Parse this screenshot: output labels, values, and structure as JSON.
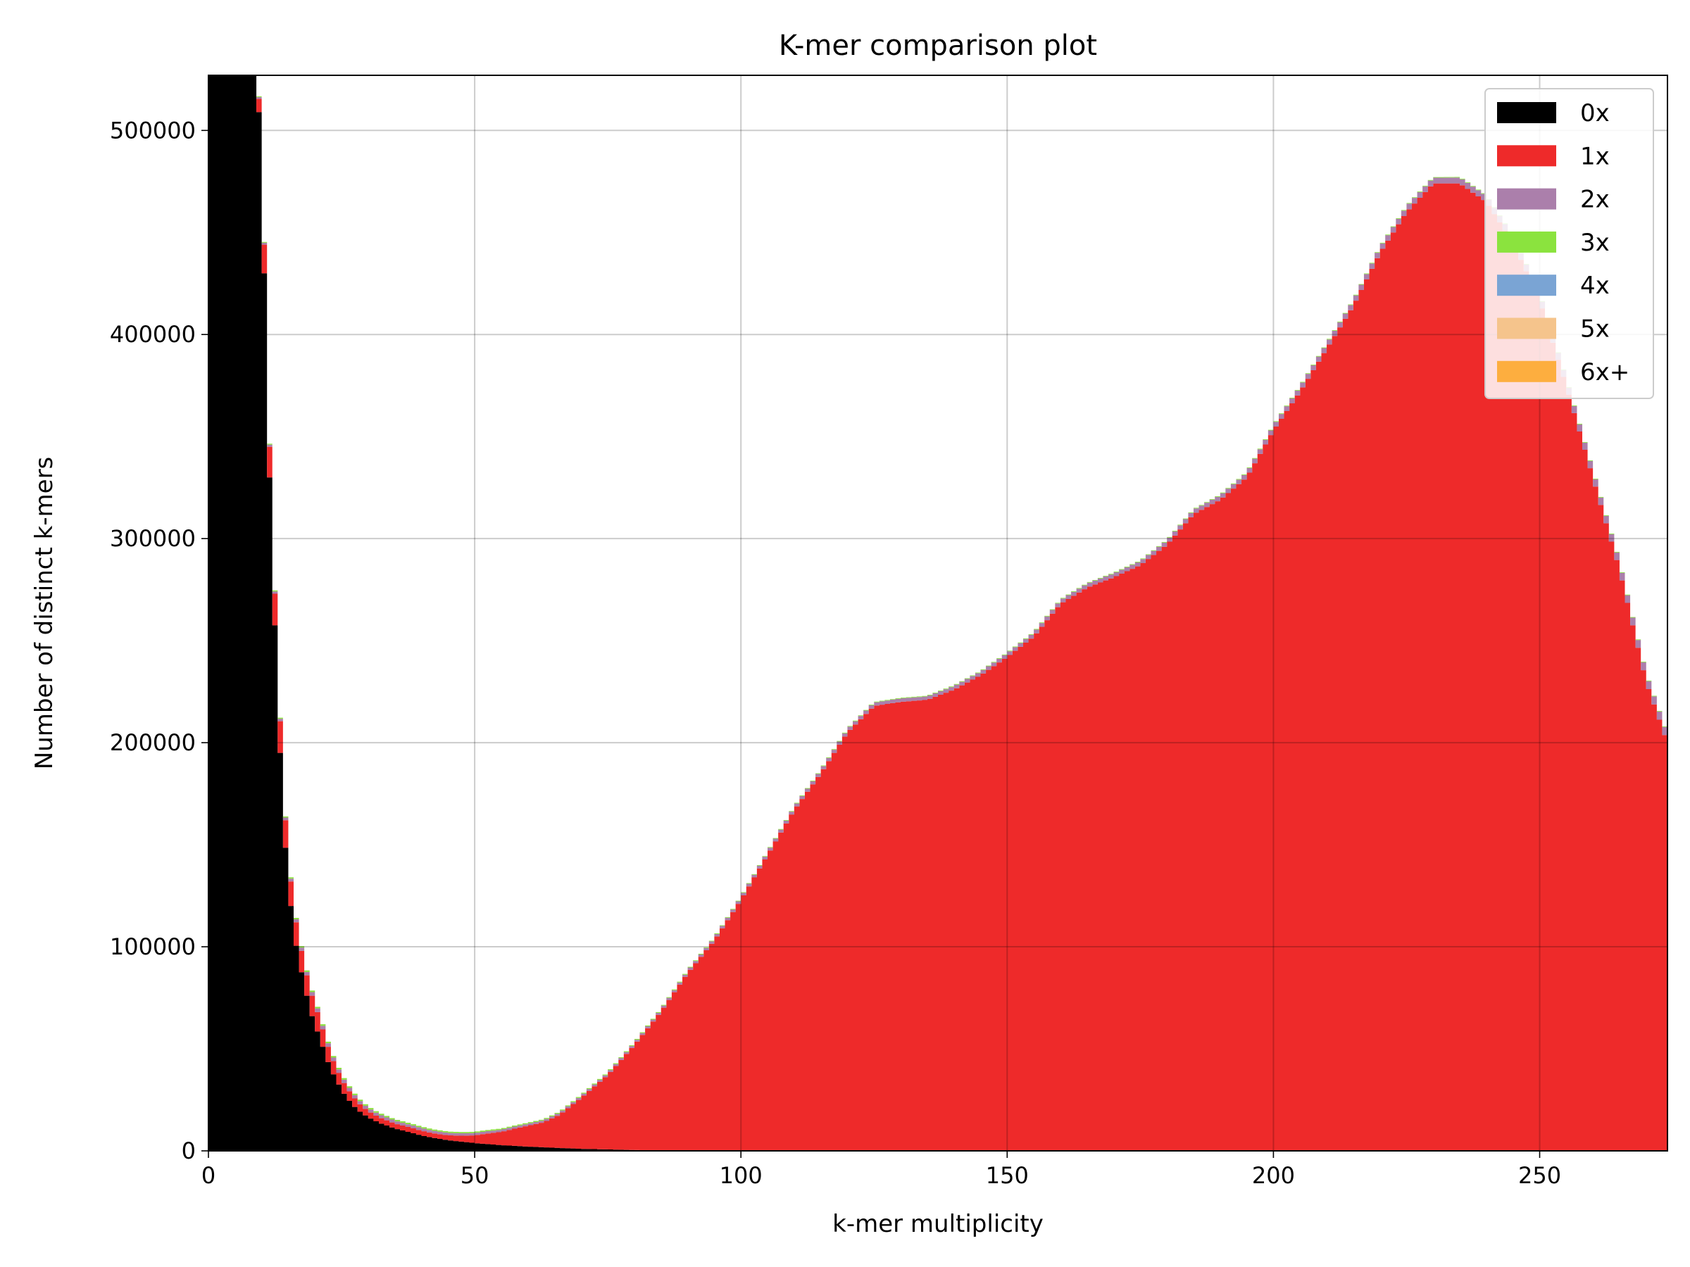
{
  "chart_data": {
    "type": "area",
    "title": "K-mer comparison plot",
    "xlabel": "k-mer multiplicity",
    "ylabel": "Number of distinct k-mers",
    "xlim": [
      0,
      274
    ],
    "ylim": [
      0,
      527000
    ],
    "xticks": [
      0,
      50,
      100,
      150,
      200,
      250
    ],
    "yticks": [
      0,
      100000,
      200000,
      300000,
      400000,
      500000
    ],
    "grid": true,
    "legend_position": "top-right",
    "stacked": true,
    "series": [
      {
        "name": "0x",
        "color": "#000000",
        "points": [
          [
            0,
            528000
          ],
          [
            9,
            528000
          ],
          [
            10,
            490000
          ],
          [
            11,
            370000
          ],
          [
            12,
            290000
          ],
          [
            13,
            225000
          ],
          [
            14,
            165000
          ],
          [
            15,
            132000
          ],
          [
            16,
            108000
          ],
          [
            17,
            93000
          ],
          [
            18,
            82000
          ],
          [
            19,
            70000
          ],
          [
            20,
            62000
          ],
          [
            21,
            55000
          ],
          [
            22,
            47000
          ],
          [
            23,
            40000
          ],
          [
            24,
            35000
          ],
          [
            25,
            30000
          ],
          [
            26,
            26000
          ],
          [
            27,
            23000
          ],
          [
            28,
            20000
          ],
          [
            30,
            16500
          ],
          [
            32,
            13800
          ],
          [
            35,
            11000
          ],
          [
            38,
            9000
          ],
          [
            40,
            7500
          ],
          [
            42,
            6500
          ],
          [
            45,
            5200
          ],
          [
            48,
            4400
          ],
          [
            50,
            3800
          ],
          [
            55,
            2800
          ],
          [
            60,
            2100
          ],
          [
            65,
            1500
          ],
          [
            70,
            1000
          ],
          [
            75,
            700
          ],
          [
            80,
            400
          ],
          [
            90,
            150
          ],
          [
            100,
            0
          ],
          [
            274,
            0
          ]
        ]
      },
      {
        "name": "1x",
        "color": "#ee2a2a",
        "points": [
          [
            0,
            0
          ],
          [
            9,
            0
          ],
          [
            10,
            13000
          ],
          [
            11,
            15000
          ],
          [
            12,
            15000
          ],
          [
            13,
            16000
          ],
          [
            14,
            15000
          ],
          [
            15,
            12000
          ],
          [
            16,
            12000
          ],
          [
            17,
            11000
          ],
          [
            18,
            10000
          ],
          [
            19,
            10000
          ],
          [
            20,
            10000
          ],
          [
            21,
            9000
          ],
          [
            22,
            8000
          ],
          [
            23,
            7000
          ],
          [
            24,
            6000
          ],
          [
            25,
            5500
          ],
          [
            26,
            5000
          ],
          [
            27,
            4500
          ],
          [
            28,
            3900
          ],
          [
            30,
            3000
          ],
          [
            32,
            2700
          ],
          [
            35,
            2400
          ],
          [
            38,
            2400
          ],
          [
            40,
            2400
          ],
          [
            42,
            2200
          ],
          [
            45,
            2400
          ],
          [
            48,
            3000
          ],
          [
            50,
            3800
          ],
          [
            52,
            5000
          ],
          [
            55,
            6500
          ],
          [
            58,
            8800
          ],
          [
            60,
            10200
          ],
          [
            63,
            12300
          ],
          [
            66,
            16400
          ],
          [
            70,
            25000
          ],
          [
            75,
            36500
          ],
          [
            80,
            51500
          ],
          [
            85,
            68000
          ],
          [
            90,
            87000
          ],
          [
            95,
            103000
          ],
          [
            100,
            123000
          ],
          [
            105,
            145000
          ],
          [
            110,
            167000
          ],
          [
            115,
            185000
          ],
          [
            120,
            205000
          ],
          [
            125,
            218000
          ],
          [
            130,
            220000
          ],
          [
            135,
            221000
          ],
          [
            140,
            226000
          ],
          [
            145,
            233000
          ],
          [
            150,
            242000
          ],
          [
            155,
            252000
          ],
          [
            160,
            268000
          ],
          [
            165,
            276000
          ],
          [
            170,
            281000
          ],
          [
            175,
            287000
          ],
          [
            180,
            297000
          ],
          [
            185,
            312000
          ],
          [
            190,
            319000
          ],
          [
            195,
            330000
          ],
          [
            200,
            353000
          ],
          [
            205,
            372000
          ],
          [
            210,
            393000
          ],
          [
            215,
            414000
          ],
          [
            220,
            440000
          ],
          [
            225,
            460000
          ],
          [
            230,
            474000
          ],
          [
            235,
            474000
          ],
          [
            240,
            465000
          ],
          [
            245,
            445000
          ],
          [
            250,
            417000
          ],
          [
            255,
            375000
          ],
          [
            260,
            330000
          ],
          [
            265,
            285000
          ],
          [
            270,
            230000
          ],
          [
            274,
            200000
          ]
        ]
      },
      {
        "name": "2x",
        "color": "#ab7fab",
        "points": [
          [
            0,
            0
          ],
          [
            20,
            1800
          ],
          [
            30,
            1500
          ],
          [
            45,
            1200
          ],
          [
            60,
            1000
          ],
          [
            80,
            900
          ],
          [
            120,
            1600
          ],
          [
            180,
            2000
          ],
          [
            230,
            2800
          ],
          [
            260,
            3500
          ],
          [
            274,
            4000
          ]
        ]
      },
      {
        "name": "3x",
        "color": "#8be33e",
        "points": [
          [
            0,
            0
          ],
          [
            20,
            800
          ],
          [
            40,
            700
          ],
          [
            60,
            500
          ],
          [
            100,
            300
          ],
          [
            274,
            300
          ]
        ]
      },
      {
        "name": "4x",
        "color": "#7aa4d4",
        "points": [
          [
            0,
            0
          ],
          [
            274,
            0
          ]
        ]
      },
      {
        "name": "5x",
        "color": "#f5c48c",
        "points": [
          [
            0,
            0
          ],
          [
            274,
            0
          ]
        ]
      },
      {
        "name": "6x+",
        "color": "#fdae3f",
        "points": [
          [
            0,
            0
          ],
          [
            274,
            0
          ]
        ]
      }
    ]
  }
}
